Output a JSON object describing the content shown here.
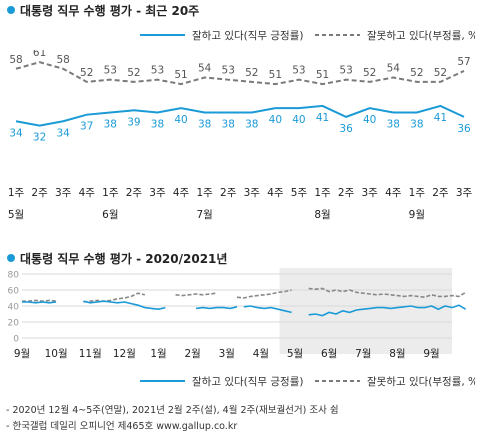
{
  "chart_data": [
    {
      "type": "line",
      "title": "대통령 직무 수행 평가 - 최근 20주",
      "categories": [
        "1주",
        "2주",
        "3주",
        "4주",
        "1주",
        "2주",
        "3주",
        "4주",
        "1주",
        "2주",
        "3주",
        "4주",
        "5주",
        "1주",
        "2주",
        "3주",
        "4주",
        "1주",
        "2주",
        "3주"
      ],
      "month_labels": [
        {
          "label": "5월",
          "index": 0
        },
        {
          "label": "6월",
          "index": 4
        },
        {
          "label": "7월",
          "index": 8
        },
        {
          "label": "8월",
          "index": 13
        },
        {
          "label": "9월",
          "index": 17
        }
      ],
      "series": [
        {
          "name": "잘하고 있다(직무 긍정률)",
          "color": "#1a9ad6",
          "style": "solid",
          "values": [
            34,
            32,
            34,
            37,
            38,
            39,
            38,
            40,
            38,
            38,
            38,
            40,
            40,
            41,
            36,
            40,
            38,
            38,
            41,
            36
          ]
        },
        {
          "name": "잘못하고 있다(부정률, %)",
          "color": "#7a7a7a",
          "style": "dashed",
          "values": [
            58,
            61,
            58,
            52,
            53,
            52,
            53,
            51,
            54,
            53,
            52,
            51,
            53,
            51,
            53,
            52,
            54,
            52,
            52,
            57
          ]
        }
      ]
    },
    {
      "type": "line",
      "title": "대통령 직무 수행 평가 - 2020/2021년",
      "x_labels": [
        "9월",
        "10월",
        "11월",
        "12월",
        "1월",
        "2월",
        "3월",
        "4월",
        "5월",
        "6월",
        "7월",
        "8월",
        "9월"
      ],
      "y_ticks": [
        0,
        20,
        40,
        60,
        80
      ],
      "ylim": [
        0,
        80
      ],
      "shaded_from_label": "5월",
      "series": [
        {
          "name": "잘하고 있다(직무 긍정률)",
          "color": "#1a9ad6",
          "style": "solid",
          "segments": [
            [
              [
                0,
                45
              ],
              [
                0.2,
                45
              ],
              [
                0.4,
                44
              ],
              [
                0.6,
                45
              ],
              [
                0.8,
                44
              ],
              [
                1,
                45
              ]
            ],
            [
              [
                1.8,
                46
              ],
              [
                2,
                44
              ],
              [
                2.2,
                45
              ],
              [
                2.4,
                46
              ],
              [
                2.6,
                45
              ],
              [
                2.8,
                44
              ],
              [
                3,
                45
              ],
              [
                3.2,
                43
              ],
              [
                3.4,
                41
              ],
              [
                3.6,
                38
              ],
              [
                3.8,
                37
              ],
              [
                4,
                36
              ],
              [
                4.2,
                38
              ]
            ],
            [
              [
                5.1,
                37
              ],
              [
                5.3,
                38
              ],
              [
                5.5,
                37
              ],
              [
                5.7,
                38
              ],
              [
                5.9,
                38
              ],
              [
                6.1,
                37
              ],
              [
                6.3,
                39
              ]
            ],
            [
              [
                6.5,
                39
              ],
              [
                6.7,
                40
              ],
              [
                6.9,
                38
              ],
              [
                7.1,
                37
              ],
              [
                7.3,
                38
              ],
              [
                7.5,
                36
              ],
              [
                7.7,
                34
              ],
              [
                7.9,
                32
              ]
            ],
            [
              [
                8.4,
                29
              ],
              [
                8.6,
                30
              ],
              [
                8.8,
                28
              ],
              [
                9.0,
                32
              ],
              [
                9.2,
                30
              ],
              [
                9.4,
                34
              ],
              [
                9.6,
                32
              ],
              [
                9.8,
                35
              ],
              [
                10.0,
                36
              ],
              [
                10.2,
                37
              ],
              [
                10.4,
                38
              ],
              [
                10.6,
                38
              ],
              [
                10.8,
                37
              ],
              [
                11.0,
                38
              ],
              [
                11.2,
                39
              ],
              [
                11.4,
                40
              ],
              [
                11.6,
                38
              ],
              [
                11.8,
                38
              ],
              [
                12.0,
                40
              ],
              [
                12.2,
                36
              ],
              [
                12.4,
                40
              ],
              [
                12.6,
                38
              ],
              [
                12.8,
                41
              ],
              [
                13.0,
                36
              ]
            ]
          ]
        },
        {
          "name": "잘못하고 있다(부정률, %)",
          "color": "#888888",
          "style": "dashed",
          "segments": [
            [
              [
                0,
                46
              ],
              [
                0.2,
                46
              ],
              [
                0.4,
                47
              ],
              [
                0.6,
                46
              ],
              [
                0.8,
                47
              ],
              [
                1,
                46
              ]
            ],
            [
              [
                1.8,
                45
              ],
              [
                2,
                46
              ],
              [
                2.2,
                47
              ],
              [
                2.4,
                46
              ],
              [
                2.6,
                47
              ],
              [
                2.8,
                49
              ],
              [
                3,
                50
              ],
              [
                3.2,
                52
              ],
              [
                3.4,
                56
              ],
              [
                3.6,
                54
              ]
            ],
            [
              [
                4.5,
                54
              ],
              [
                4.7,
                53
              ],
              [
                4.9,
                54
              ],
              [
                5.1,
                55
              ],
              [
                5.3,
                54
              ],
              [
                5.5,
                55
              ],
              [
                5.7,
                56
              ]
            ],
            [
              [
                6.3,
                51
              ],
              [
                6.5,
                50
              ],
              [
                6.7,
                52
              ],
              [
                6.9,
                53
              ],
              [
                7.1,
                54
              ],
              [
                7.3,
                55
              ],
              [
                7.5,
                57
              ],
              [
                7.7,
                58
              ],
              [
                7.9,
                60
              ]
            ],
            [
              [
                8.4,
                62
              ],
              [
                8.6,
                61
              ],
              [
                8.8,
                62
              ],
              [
                9.0,
                58
              ],
              [
                9.2,
                60
              ],
              [
                9.4,
                58
              ],
              [
                9.6,
                60
              ],
              [
                9.8,
                57
              ],
              [
                10.0,
                56
              ],
              [
                10.2,
                55
              ],
              [
                10.4,
                54
              ],
              [
                10.6,
                55
              ],
              [
                10.8,
                54
              ],
              [
                11.0,
                53
              ],
              [
                11.2,
                52
              ],
              [
                11.4,
                53
              ],
              [
                11.6,
                52
              ],
              [
                11.8,
                51
              ],
              [
                12.0,
                54
              ],
              [
                12.2,
                52
              ],
              [
                12.4,
                52
              ],
              [
                12.6,
                53
              ],
              [
                12.8,
                52
              ],
              [
                13.0,
                57
              ]
            ]
          ]
        }
      ]
    }
  ],
  "legend": {
    "approve": "잘하고 있다(직무 긍정률)",
    "disapprove": "잘못하고 있다(부정률, %)"
  },
  "notes": [
    "- 2020년 12월 4~5주(연말), 2021년 2월 2주(설), 4월 2주(재보궐선거) 조사 쉼",
    "- 한국갤럽 데일리 오피니언 제465호 www.gallup.co.kr"
  ],
  "colors": {
    "blue": "#1a9ad6",
    "gray": "#7a7a7a",
    "shade": "#ececec"
  }
}
